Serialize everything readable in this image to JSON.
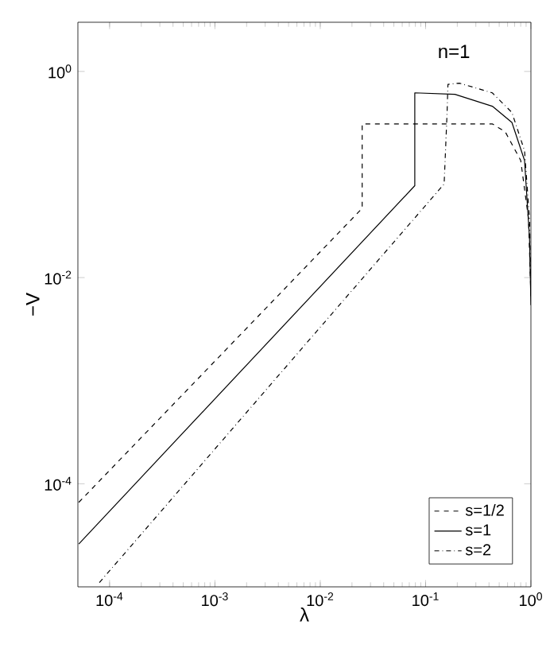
{
  "chart_data": {
    "type": "line",
    "xlabel": "λ",
    "ylabel": "−V",
    "log": "xy",
    "xlim": [
      5e-05,
      1
    ],
    "ylim": [
      1e-05,
      3
    ],
    "xticks": [
      {
        "value": 0.0001,
        "label": "10$^{-4}$"
      },
      {
        "value": 0.001,
        "label": "10$^{-3}$"
      },
      {
        "value": 0.01,
        "label": "10$^{-2}$"
      },
      {
        "value": 0.1,
        "label": "10$^{-1}$"
      },
      {
        "value": 1,
        "label": "10$^{0}$"
      }
    ],
    "yticks": [
      {
        "value": 0.0001,
        "label": "10$^{-4}$"
      },
      {
        "value": 0.01,
        "label": "10$^{-2}$"
      },
      {
        "value": 1,
        "label": "10$^{0}$"
      }
    ],
    "legend": "bottom right",
    "annotations": [
      "n=1"
    ],
    "series": [
      {
        "name": "s=1/2",
        "color": "#000000",
        "line_style": "dashed",
        "x": [
          5.1e-05,
          0.025,
          0.025,
          0.43,
          0.57,
          0.8,
          0.95,
          1
        ],
        "values": [
          6.6e-05,
          0.047,
          0.31,
          0.31,
          0.26,
          0.137,
          0.037,
          0.0066
        ]
      },
      {
        "name": "s=1",
        "color": "#000000",
        "line_style": "solid",
        "x": [
          5.1e-05,
          0.079,
          0.079,
          0.19,
          0.43,
          0.66,
          0.87,
          0.97,
          1
        ],
        "values": [
          2.6e-05,
          0.078,
          0.62,
          0.6,
          0.46,
          0.32,
          0.137,
          0.024,
          0.0054
        ]
      },
      {
        "name": "s=2",
        "color": "#000000",
        "line_style": "dashdot",
        "x": [
          8e-05,
          0.15,
          0.16,
          0.163,
          0.21,
          0.43,
          0.66,
          0.87,
          0.97,
          1
        ],
        "values": [
          1.1e-05,
          0.081,
          0.4,
          0.75,
          0.77,
          0.62,
          0.4,
          0.17,
          0.037,
          0.0066
        ]
      }
    ]
  }
}
